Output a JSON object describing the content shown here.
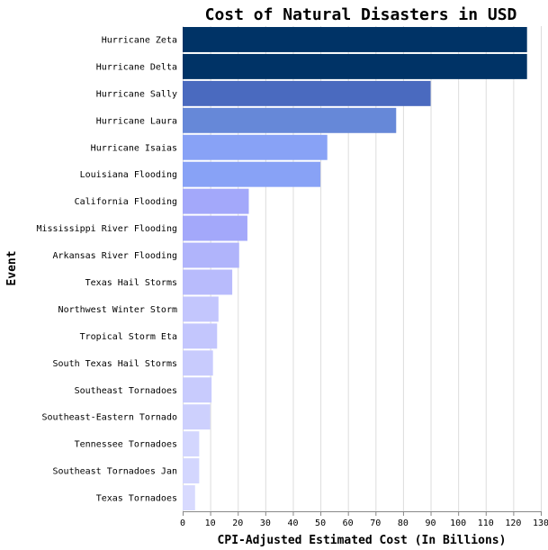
{
  "chart_data": {
    "type": "bar",
    "orientation": "horizontal",
    "title": "Cost of Natural Disasters in USD",
    "xlabel": "CPI-Adjusted Estimated Cost (In Billions)",
    "ylabel": "Event",
    "xlim": [
      0,
      130
    ],
    "xticks": [
      0,
      10,
      20,
      30,
      40,
      50,
      60,
      70,
      80,
      90,
      100,
      110,
      120,
      130
    ],
    "grid": true,
    "categories": [
      "Hurricane Zeta",
      "Hurricane Delta",
      "Hurricane Sally",
      "Hurricane Laura",
      "Hurricane Isaias",
      "Louisiana Flooding",
      "California Flooding",
      "Mississippi River Flooding",
      "Arkansas River Flooding",
      "Texas Hail Storms",
      "Northwest Winter Storm",
      "Tropical Storm Eta",
      "South Texas Hail Storms",
      "Southeast Tornadoes",
      "Southeast-Eastern Tornado",
      "Tennessee Tornadoes",
      "Southeast Tornadoes Jan",
      "Texas Tornadoes"
    ],
    "values": [
      125,
      125,
      90,
      77.5,
      52.5,
      50,
      24,
      23.5,
      20.5,
      18,
      13,
      12.5,
      11,
      10.5,
      10,
      6,
      6,
      4.5
    ],
    "colors": [
      "#003366",
      "#003366",
      "#4a6abf",
      "#6688d8",
      "#88a2f6",
      "#88a2f6",
      "#a3a8fa",
      "#a3a8fa",
      "#b0b4fb",
      "#b8bbfc",
      "#c3c6fd",
      "#c3c6fd",
      "#c8cbfd",
      "#c8cbfd",
      "#cdd0fd",
      "#d3d6fe",
      "#d3d6fe",
      "#d8dafe"
    ]
  }
}
